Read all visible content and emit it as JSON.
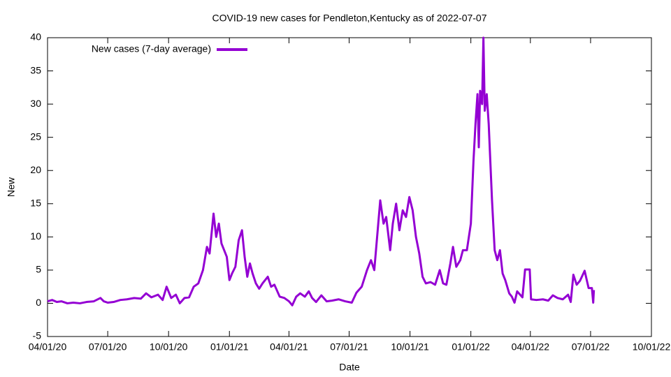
{
  "chart_data": {
    "type": "line",
    "title": "COVID-19 new cases for Pendleton,Kentucky as of 2022-07-07",
    "x_label": "Date",
    "y_label": "New",
    "legend": "top-left",
    "series": [
      {
        "name": "New cases (7-day average)",
        "color": "#9400d3",
        "x": [
          "2020-04-01",
          "2020-04-08",
          "2020-04-15",
          "2020-04-22",
          "2020-05-01",
          "2020-05-10",
          "2020-05-20",
          "2020-05-30",
          "2020-06-10",
          "2020-06-20",
          "2020-06-25",
          "2020-07-01",
          "2020-07-10",
          "2020-07-20",
          "2020-07-30",
          "2020-08-10",
          "2020-08-20",
          "2020-08-28",
          "2020-09-05",
          "2020-09-15",
          "2020-09-22",
          "2020-09-28",
          "2020-10-05",
          "2020-10-12",
          "2020-10-18",
          "2020-10-25",
          "2020-11-01",
          "2020-11-08",
          "2020-11-15",
          "2020-11-22",
          "2020-11-28",
          "2020-12-02",
          "2020-12-08",
          "2020-12-12",
          "2020-12-16",
          "2020-12-20",
          "2020-12-24",
          "2020-12-28",
          "2021-01-01",
          "2021-01-05",
          "2021-01-10",
          "2021-01-15",
          "2021-01-20",
          "2021-01-24",
          "2021-01-28",
          "2021-02-01",
          "2021-02-05",
          "2021-02-10",
          "2021-02-15",
          "2021-02-20",
          "2021-02-28",
          "2021-03-05",
          "2021-03-10",
          "2021-03-18",
          "2021-03-25",
          "2021-04-01",
          "2021-04-06",
          "2021-04-12",
          "2021-04-18",
          "2021-04-25",
          "2021-05-01",
          "2021-05-06",
          "2021-05-12",
          "2021-05-20",
          "2021-05-28",
          "2021-06-05",
          "2021-06-15",
          "2021-06-25",
          "2021-07-05",
          "2021-07-12",
          "2021-07-20",
          "2021-07-28",
          "2021-08-03",
          "2021-08-08",
          "2021-08-14",
          "2021-08-17",
          "2021-08-22",
          "2021-08-26",
          "2021-09-01",
          "2021-09-05",
          "2021-09-10",
          "2021-09-15",
          "2021-09-20",
          "2021-09-25",
          "2021-09-30",
          "2021-10-05",
          "2021-10-10",
          "2021-10-15",
          "2021-10-20",
          "2021-10-25",
          "2021-11-01",
          "2021-11-08",
          "2021-11-15",
          "2021-11-20",
          "2021-11-25",
          "2021-12-01",
          "2021-12-05",
          "2021-12-10",
          "2021-12-16",
          "2021-12-20",
          "2021-12-26",
          "2022-01-01",
          "2022-01-05",
          "2022-01-08",
          "2022-01-11",
          "2022-01-13",
          "2022-01-15",
          "2022-01-18",
          "2022-01-20",
          "2022-01-22",
          "2022-01-25",
          "2022-01-28",
          "2022-02-02",
          "2022-02-06",
          "2022-02-10",
          "2022-02-14",
          "2022-02-18",
          "2022-02-22",
          "2022-02-28",
          "2022-03-04",
          "2022-03-08",
          "2022-03-12",
          "2022-03-20",
          "2022-03-24",
          "2022-03-31",
          "2022-04-02",
          "2022-04-10",
          "2022-04-20",
          "2022-04-28",
          "2022-05-05",
          "2022-05-12",
          "2022-05-20",
          "2022-05-28",
          "2022-06-01",
          "2022-06-05",
          "2022-06-10",
          "2022-06-15",
          "2022-06-22",
          "2022-06-28",
          "2022-07-03",
          "2022-07-05",
          "2022-07-06"
        ],
        "values": [
          0.3,
          0.5,
          0.2,
          0.3,
          0,
          0.1,
          0,
          0.2,
          0.3,
          0.8,
          0.3,
          0.1,
          0.2,
          0.5,
          0.6,
          0.8,
          0.7,
          1.5,
          0.9,
          1.3,
          0.5,
          2.5,
          0.8,
          1.3,
          0,
          0.8,
          0.9,
          2.5,
          3,
          5,
          8.5,
          7.5,
          13.5,
          10,
          12,
          9,
          8,
          7,
          3.5,
          4.5,
          5.5,
          9.5,
          11,
          7,
          4,
          6,
          4.5,
          3,
          2.2,
          3,
          4,
          2.5,
          2.8,
          1,
          0.8,
          0.3,
          -0.3,
          1,
          1.5,
          1,
          1.8,
          0.8,
          0.2,
          1.2,
          0.3,
          0.4,
          0.6,
          0.3,
          0.1,
          1.6,
          2.5,
          5,
          6.5,
          5,
          12,
          15.5,
          12,
          13,
          8,
          12,
          15,
          11,
          14,
          13,
          16,
          14,
          10,
          7.5,
          4,
          3,
          3.2,
          2.8,
          5,
          3,
          2.8,
          6,
          8.5,
          5.5,
          6.5,
          8,
          8,
          12,
          21.5,
          27,
          31.5,
          23.5,
          32,
          30,
          40,
          29,
          31.5,
          27,
          15.5,
          8,
          6.5,
          8,
          4.5,
          3.5,
          1.5,
          1,
          0.1,
          1.8,
          0.9,
          5.1,
          5.1,
          0.6,
          0.5,
          0.6,
          0.4,
          1.2,
          0.8,
          0.6,
          1.3,
          0.2,
          4.3,
          2.8,
          3.4,
          4.9,
          2.3,
          2.3,
          0.1,
          2
        ]
      }
    ],
    "xlim": [
      "2020-04-01",
      "2022-10-01"
    ],
    "xticks": [
      {
        "value": "2020-04-01",
        "label": "04/01/20"
      },
      {
        "value": "2020-07-01",
        "label": "07/01/20"
      },
      {
        "value": "2020-10-01",
        "label": "10/01/20"
      },
      {
        "value": "2021-01-01",
        "label": "01/01/21"
      },
      {
        "value": "2021-04-01",
        "label": "04/01/21"
      },
      {
        "value": "2021-07-01",
        "label": "07/01/21"
      },
      {
        "value": "2021-10-01",
        "label": "10/01/21"
      },
      {
        "value": "2022-01-01",
        "label": "01/01/22"
      },
      {
        "value": "2022-04-01",
        "label": "04/01/22"
      },
      {
        "value": "2022-07-01",
        "label": "07/01/22"
      },
      {
        "value": "2022-10-01",
        "label": "10/01/22"
      }
    ],
    "ylim": [
      -5,
      40
    ],
    "yticks": [
      -5,
      0,
      5,
      10,
      15,
      20,
      25,
      30,
      35,
      40
    ]
  }
}
